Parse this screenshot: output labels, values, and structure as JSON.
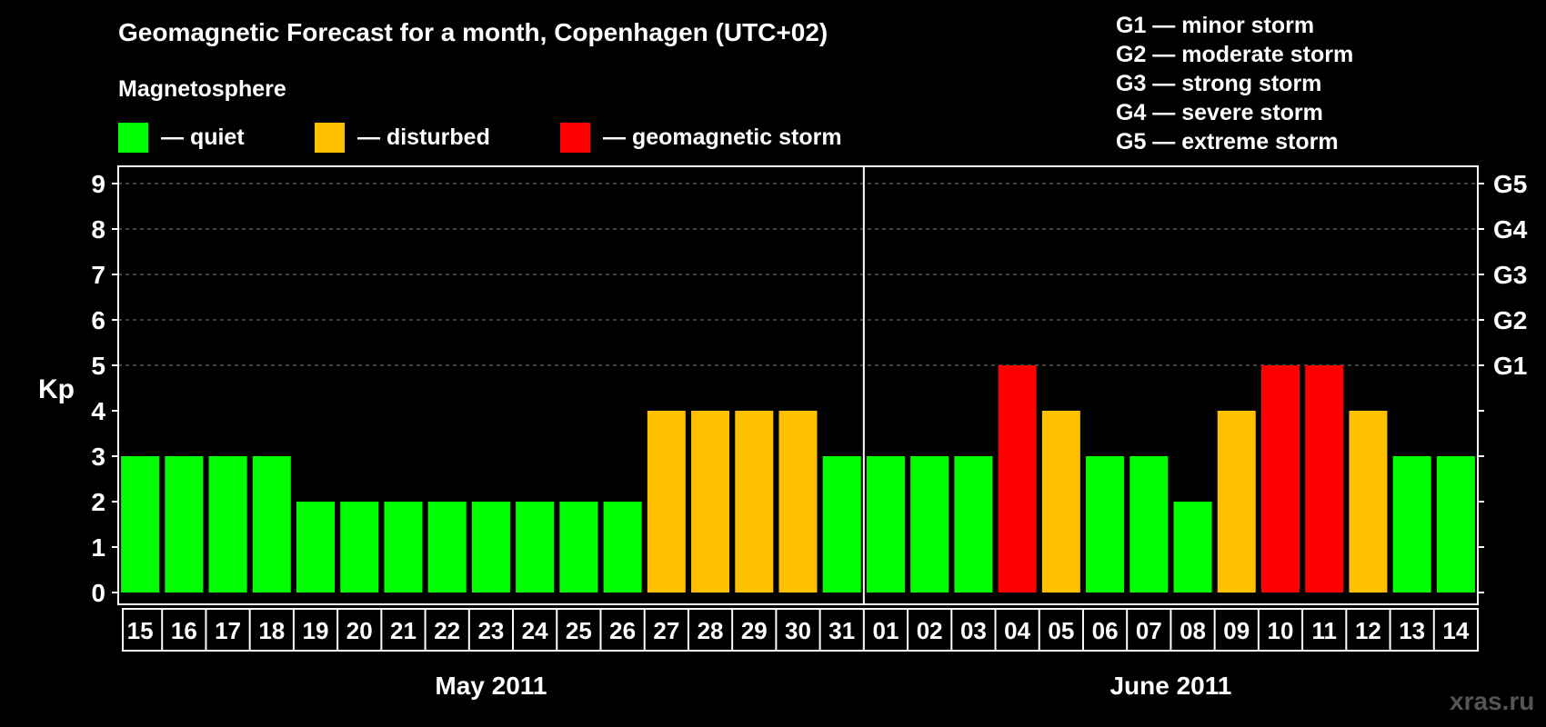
{
  "header": {
    "title": "Geomagnetic Forecast for a month, Copenhagen (UTC+02)",
    "subtitle": "Magnetosphere"
  },
  "legend": [
    {
      "label": "— quiet",
      "color": "#00ff00"
    },
    {
      "label": "— disturbed",
      "color": "#ffc000"
    },
    {
      "label": "— geomagnetic storm",
      "color": "#ff0000"
    }
  ],
  "storm_scale": [
    "G1 — minor storm",
    "G2 — moderate storm",
    "G3 — strong storm",
    "G4 — severe storm",
    "G5 — extreme storm"
  ],
  "watermark": "xras.ru",
  "chart_data": {
    "type": "bar",
    "ylabel": "Kp",
    "ylim": [
      0,
      9
    ],
    "yticks": [
      "0",
      "1",
      "2",
      "3",
      "4",
      "5",
      "6",
      "7",
      "8",
      "9"
    ],
    "right_ticks": [
      {
        "value": 5,
        "label": "G1"
      },
      {
        "value": 6,
        "label": "G2"
      },
      {
        "value": 7,
        "label": "G3"
      },
      {
        "value": 8,
        "label": "G4"
      },
      {
        "value": 9,
        "label": "G5"
      }
    ],
    "grid": "dashed at Kp 5-9",
    "categories": [
      "15",
      "16",
      "17",
      "18",
      "19",
      "20",
      "21",
      "22",
      "23",
      "24",
      "25",
      "26",
      "27",
      "28",
      "29",
      "30",
      "31",
      "01",
      "02",
      "03",
      "04",
      "05",
      "06",
      "07",
      "08",
      "09",
      "10",
      "11",
      "12",
      "13",
      "14"
    ],
    "values": [
      3,
      3,
      3,
      3,
      2,
      2,
      2,
      2,
      2,
      2,
      2,
      2,
      4,
      4,
      4,
      4,
      3,
      3,
      3,
      3,
      5,
      4,
      3,
      3,
      2,
      4,
      5,
      5,
      4,
      3,
      3
    ],
    "level_colors": {
      "quiet": "#00ff00",
      "disturbed": "#ffc000",
      "storm": "#ff0000"
    },
    "months": [
      {
        "label": "May 2011",
        "start": 0,
        "count": 17
      },
      {
        "label": "June 2011",
        "start": 17,
        "count": 14
      }
    ]
  }
}
